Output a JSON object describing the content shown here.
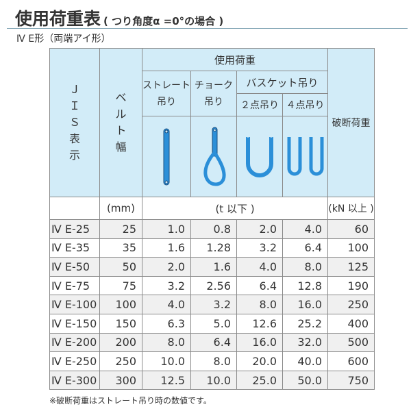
{
  "title": "使用荷重表",
  "title_note": "( つり角度α =0°の場合 )",
  "subtitle": "Ⅳ E形（両端アイ形）",
  "header": {
    "jis": [
      "Ｊ",
      "Ｉ",
      "Ｓ",
      "表",
      "示"
    ],
    "belt": [
      "ベ",
      "ル",
      "ト",
      "幅"
    ],
    "load": "使用荷重",
    "straight": [
      "ストレート",
      "吊り"
    ],
    "choke": [
      "チョーク",
      "吊り"
    ],
    "basket": "バスケット吊り",
    "two_point": "２点吊り",
    "four_point": "４点吊り",
    "breaking": "破断荷重",
    "unit_mm": "(mm)",
    "unit_t": "(t 以下 )",
    "unit_kn": "(kN 以上 )"
  },
  "sling_color": "#2b8fd8",
  "rows": [
    [
      "Ⅳ E-25",
      "25",
      "1.0",
      "0.8",
      "2.0",
      "4.0",
      "60"
    ],
    [
      "Ⅳ E-35",
      "35",
      "1.6",
      "1.28",
      "3.2",
      "6.4",
      "100"
    ],
    [
      "Ⅳ E-50",
      "50",
      "2.0",
      "1.6",
      "4.0",
      "8.0",
      "125"
    ],
    [
      "Ⅳ E-75",
      "75",
      "3.2",
      "2.56",
      "6.4",
      "12.8",
      "190"
    ],
    [
      "Ⅳ E-100",
      "100",
      "4.0",
      "3.2",
      "8.0",
      "16.0",
      "250"
    ],
    [
      "Ⅳ E-150",
      "150",
      "6.3",
      "5.0",
      "12.6",
      "25.2",
      "400"
    ],
    [
      "Ⅳ E-200",
      "200",
      "8.0",
      "6.4",
      "16.0",
      "32.0",
      "500"
    ],
    [
      "Ⅳ E-250",
      "250",
      "10.0",
      "8.0",
      "20.0",
      "40.0",
      "600"
    ],
    [
      "Ⅳ E-300",
      "300",
      "12.5",
      "10.0",
      "25.0",
      "50.0",
      "750"
    ]
  ],
  "footnote": "※破断荷重はストレート吊り時の数値です。"
}
